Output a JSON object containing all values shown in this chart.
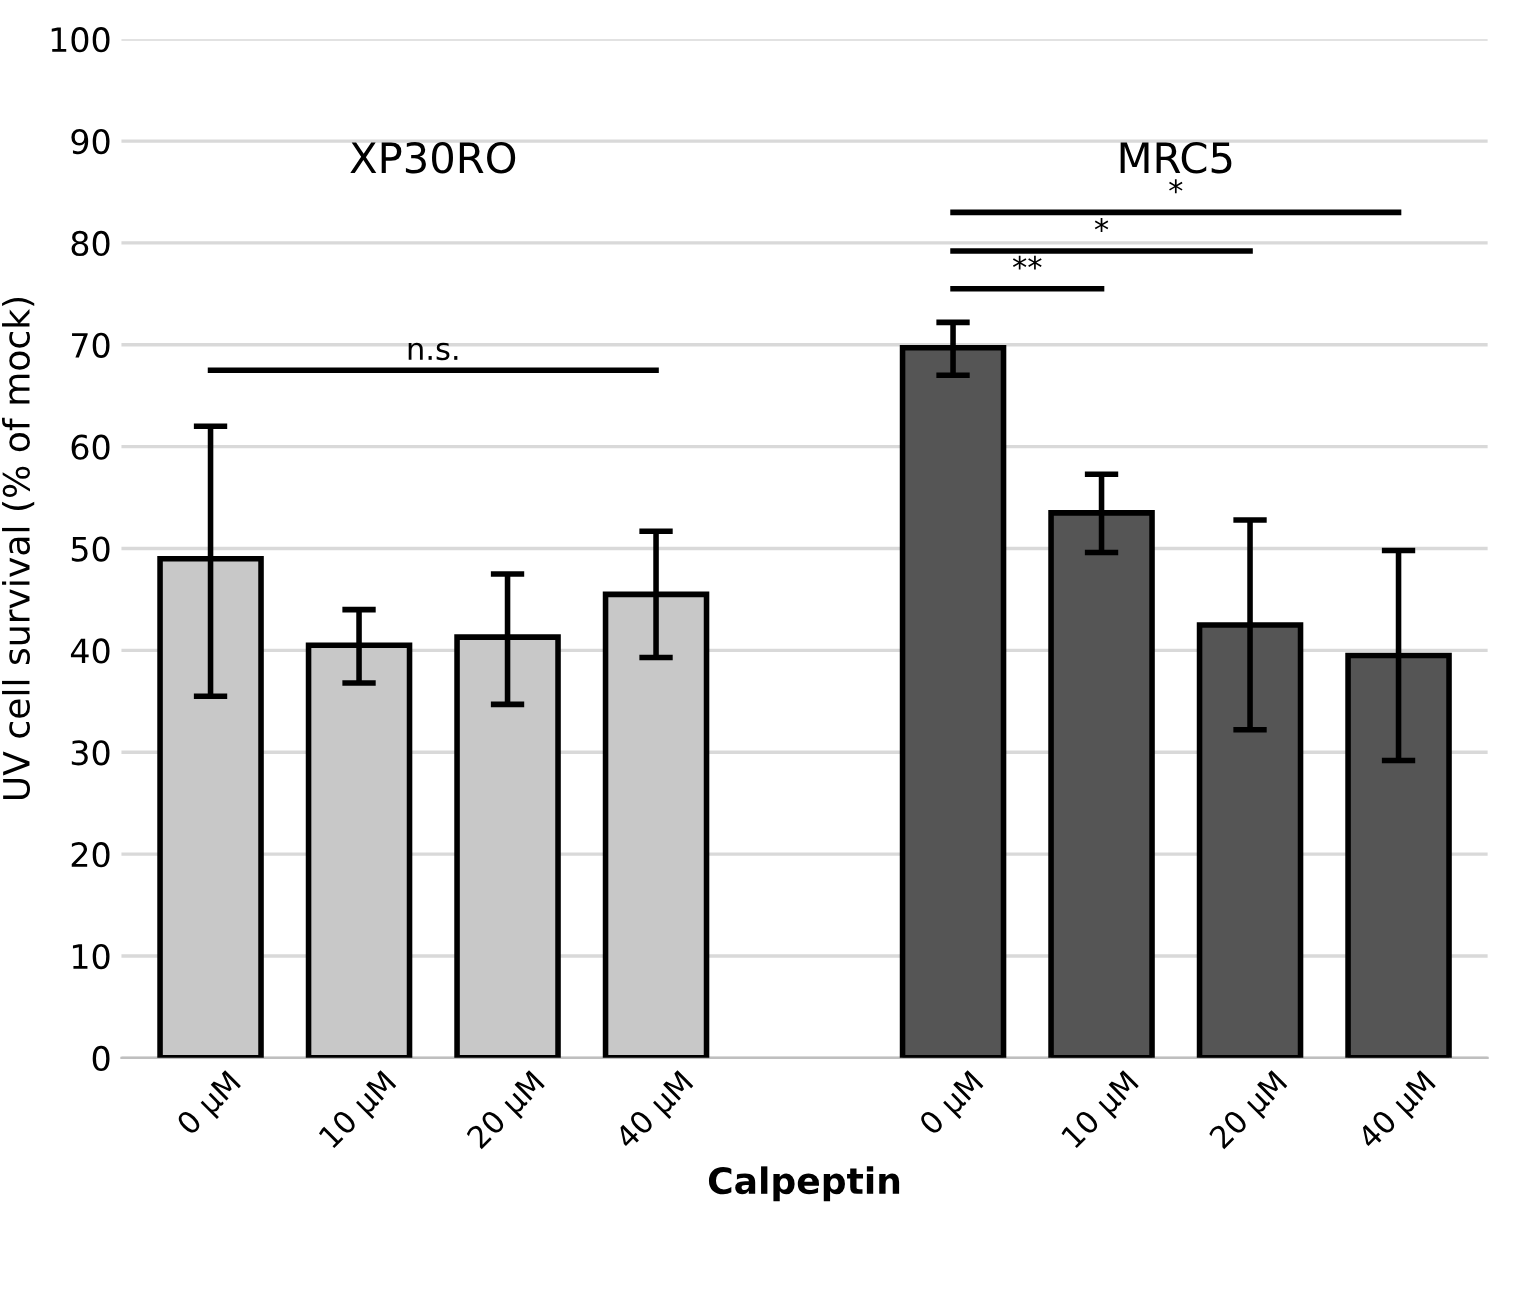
{
  "chart_data": {
    "type": "bar",
    "xlabel": "Calpeptin",
    "ylabel": "UV cell survival (% of mock)",
    "categories": [
      "0 µM",
      "10 µM",
      "20 µM",
      "40 µM",
      null,
      "0 µM",
      "10 µM",
      "20 µM",
      "40 µM"
    ],
    "values": [
      49,
      40.5,
      41.3,
      45.5,
      null,
      69.7,
      53.5,
      42.5,
      39.5
    ],
    "colors": [
      "#c8c8c8",
      "#c8c8c8",
      "#c8c8c8",
      "#c8c8c8",
      "#c8c8c8",
      "#555555",
      "#555555",
      "#555555",
      "#555555"
    ],
    "errors": [
      [
        35.5,
        62
      ],
      [
        36.8,
        44
      ],
      [
        34.7,
        47.5
      ],
      [
        39.3,
        51.7
      ],
      null,
      [
        67,
        72.2
      ],
      [
        49.6,
        57.3
      ],
      [
        32.2,
        52.8
      ],
      [
        29.2,
        49.8
      ]
    ],
    "ylim": [
      0,
      100
    ],
    "yticks": [
      0,
      10,
      20,
      30,
      40,
      50,
      60,
      70,
      80,
      90,
      100
    ],
    "grid": "y",
    "annotations": [
      "XP30RO",
      "MRC5",
      "n.s.",
      "**",
      "*",
      "*"
    ]
  }
}
